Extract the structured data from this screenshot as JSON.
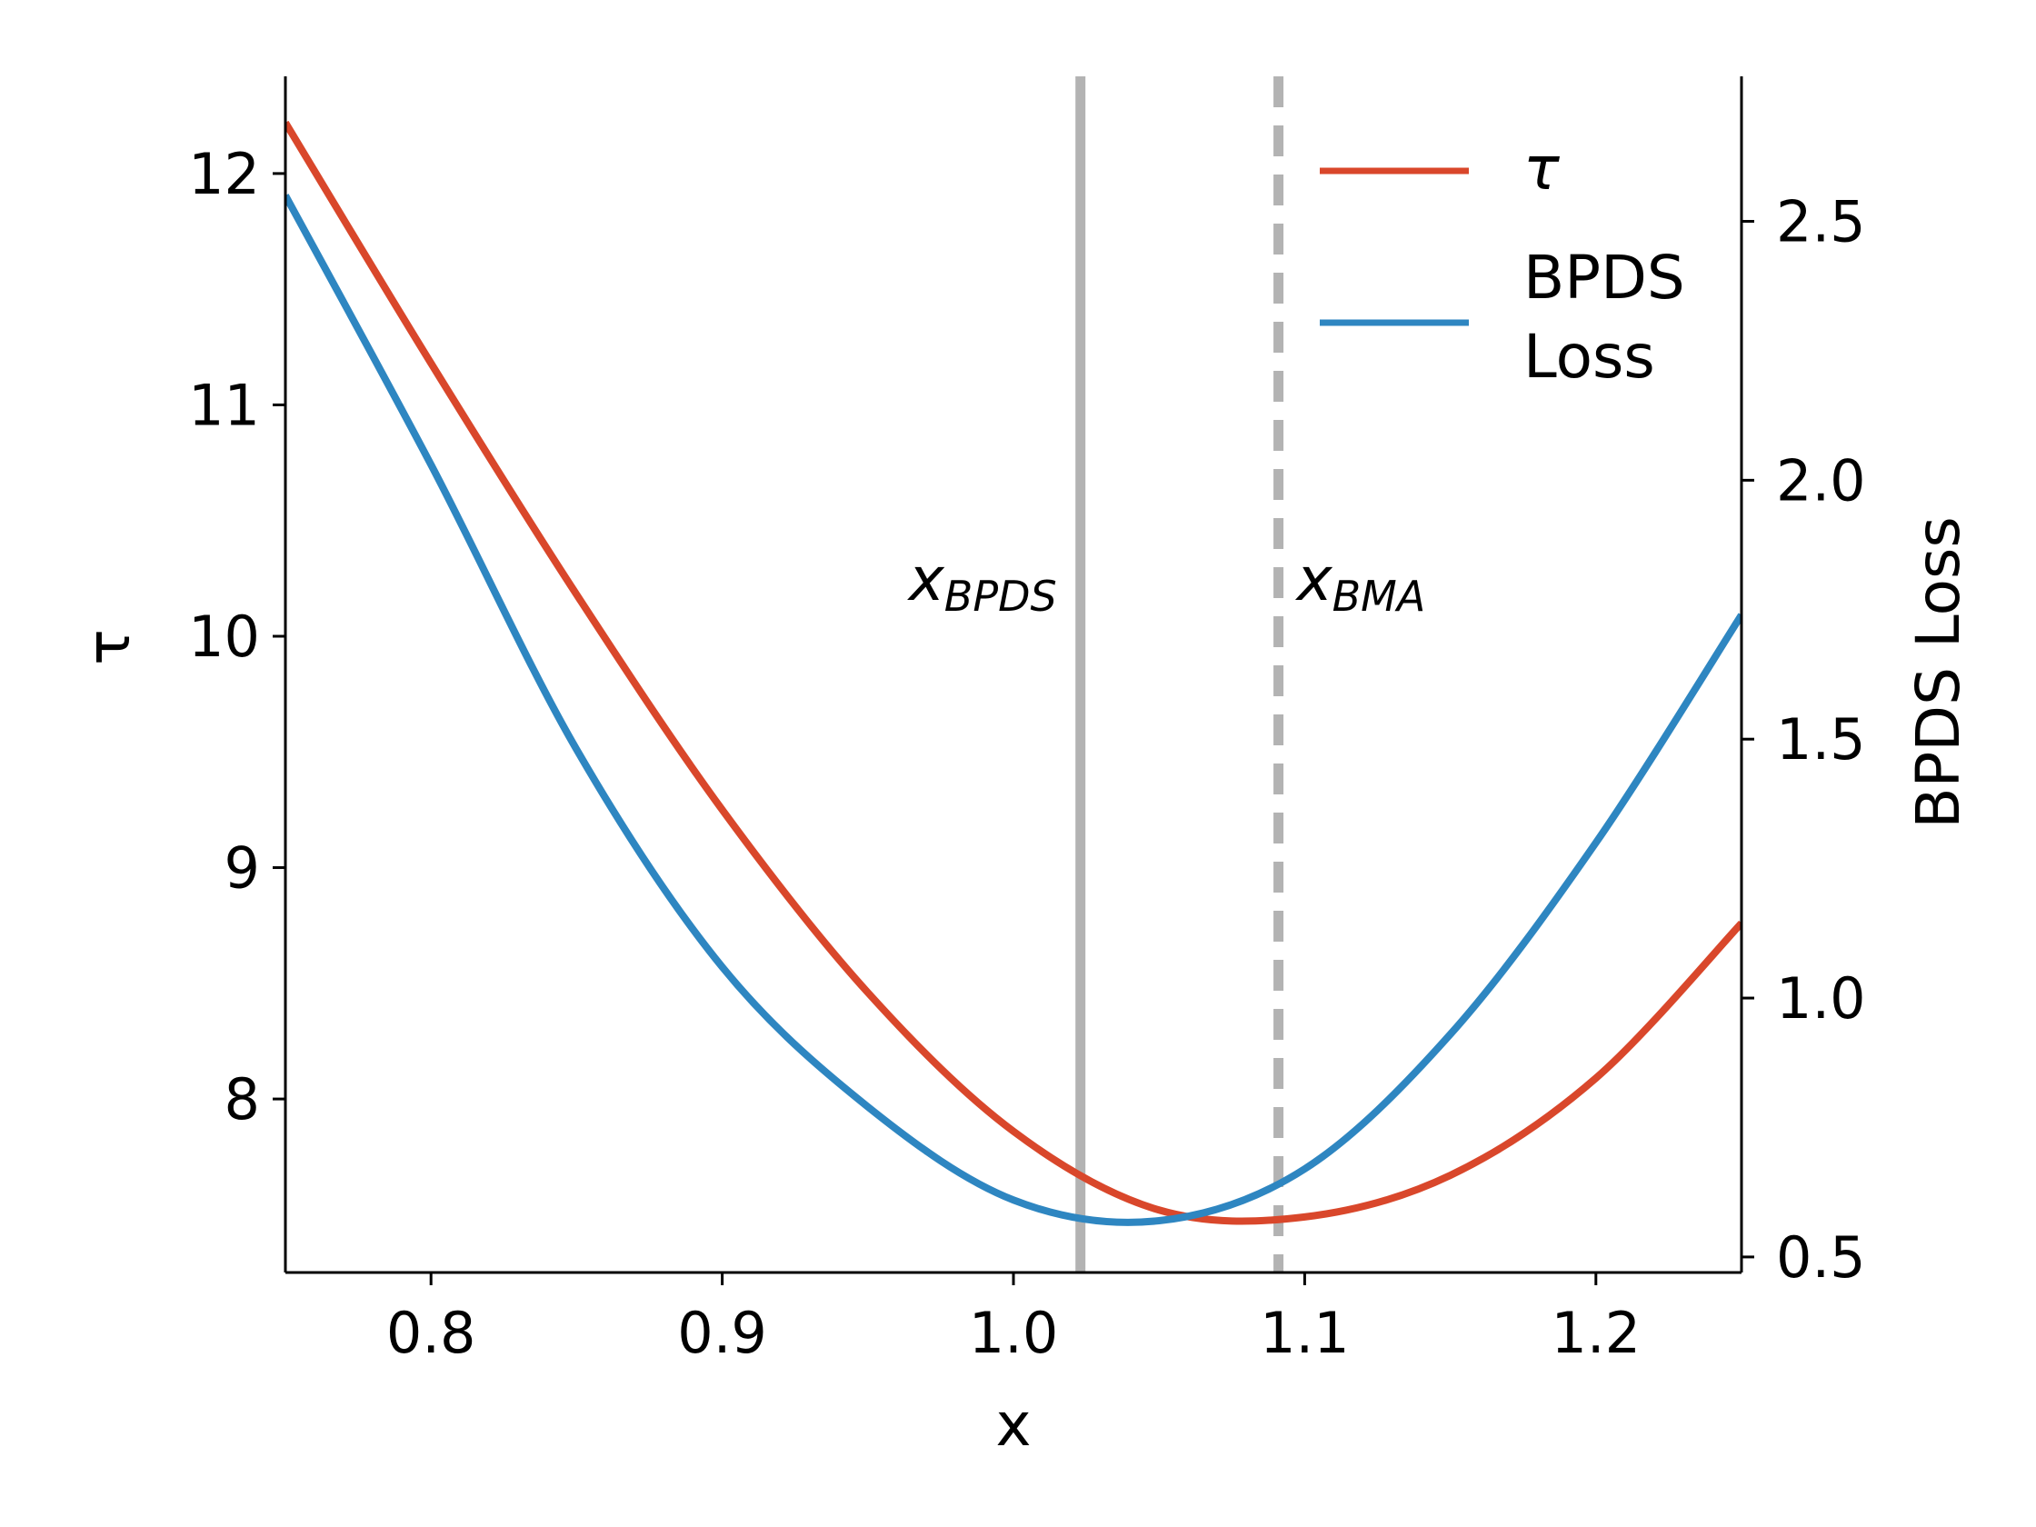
{
  "chart_data": {
    "type": "line",
    "xlabel": "x",
    "ylabel_left": "τ",
    "ylabel_right": "BPDS Loss",
    "xlim": [
      0.75,
      1.25
    ],
    "ylim_left": [
      7.25,
      12.42
    ],
    "ylim_right": [
      0.47,
      2.78
    ],
    "xticks": [
      "0.8",
      "0.9",
      "1.0",
      "1.1",
      "1.2"
    ],
    "yticks_left": [
      "8",
      "9",
      "10",
      "11",
      "12"
    ],
    "yticks_right": [
      "0.5",
      "1.0",
      "1.5",
      "2.0",
      "2.5"
    ],
    "grid": false,
    "legend_position": "top-right",
    "series": [
      {
        "name": "τ",
        "axis": "left",
        "color": "#d9472b",
        "x": [
          0.75,
          0.8,
          0.85,
          0.9,
          0.95,
          1.0,
          1.05,
          1.1,
          1.15,
          1.2,
          1.25
        ],
        "y": [
          12.22,
          11.18,
          10.18,
          9.25,
          8.46,
          7.86,
          7.52,
          7.49,
          7.67,
          8.09,
          8.76
        ]
      },
      {
        "name": "BPDS\nLoss",
        "legend_lines": [
          "BPDS",
          "Loss"
        ],
        "axis": "right",
        "color": "#2e86c1",
        "x": [
          0.75,
          0.8,
          0.85,
          0.9,
          0.95,
          1.0,
          1.05,
          1.1,
          1.15,
          1.2,
          1.25
        ],
        "y": [
          2.55,
          2.03,
          1.48,
          1.06,
          0.79,
          0.61,
          0.57,
          0.67,
          0.93,
          1.3,
          1.74
        ]
      }
    ],
    "annotations": [
      {
        "name": "x_BPDS",
        "base": "x",
        "sub": "BPDS",
        "x": 1.023,
        "style": "solid",
        "color": "#b3b3b3"
      },
      {
        "name": "x_BMA",
        "base": "x",
        "sub": "BMA",
        "x": 1.091,
        "style": "dashed",
        "color": "#b3b3b3"
      }
    ]
  }
}
